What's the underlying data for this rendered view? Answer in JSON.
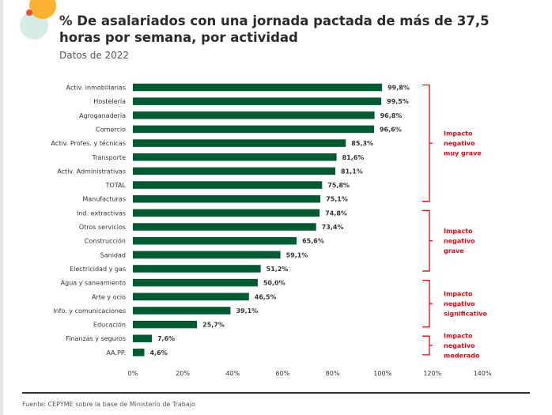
{
  "header": {
    "title": "% De asalariados con una jornada pactada de más de 37,5 horas por semana, por actividad",
    "subtitle": "Datos de 2022"
  },
  "footer": {
    "source": "Fuente: CEPYME sobre la base de Ministerio de Trabajo"
  },
  "colors": {
    "bar": "#005a32",
    "bracket": "#e30613",
    "logo_orange": "#f9b233",
    "logo_mint": "#d5ece3",
    "logo_red": "#e84e3c"
  },
  "chart_data": {
    "type": "bar",
    "orientation": "horizontal",
    "categories": [
      "Activ. inmobiliarias",
      "Hostelería",
      "Agroganadería",
      "Comercio",
      "Activ. Profes. y técnicas",
      "Transporte",
      "Activ. Administrativas",
      "TOTAL",
      "Manufacturas",
      "Ind. extractivas",
      "Otros servicios",
      "Construcción",
      "Sanidad",
      "Electricidad y gas",
      "Agua y saneamiento",
      "Arte y ocio",
      "Info. y comunicaciones",
      "Educación",
      "Finanzas y seguros",
      "AA.PP."
    ],
    "values": [
      99.8,
      99.5,
      96.8,
      96.6,
      85.3,
      81.6,
      81.1,
      75.8,
      75.1,
      74.8,
      73.4,
      65.6,
      59.1,
      51.2,
      50.0,
      46.5,
      39.1,
      25.7,
      7.6,
      4.6
    ],
    "value_labels": [
      "99,8%",
      "99,5%",
      "96,8%",
      "96,6%",
      "85,3%",
      "81,6%",
      "81,1%",
      "75,8%",
      "75,1%",
      "74,8%",
      "73,4%",
      "65,6%",
      "59,1%",
      "51,2%",
      "50,0%",
      "46,5%",
      "39,1%",
      "25,7%",
      "7,6%",
      "4,6%"
    ],
    "xlim": [
      0,
      140
    ],
    "xticks": [
      0,
      20,
      40,
      60,
      80,
      100,
      120,
      140
    ],
    "xtick_labels": [
      "0%",
      "20%",
      "40%",
      "60%",
      "80%",
      "100%",
      "120%",
      "140%"
    ],
    "grid": false,
    "groups": [
      {
        "label": "Impacto negativo muy grave",
        "lines": [
          "Impacto",
          "negativo",
          "muy grave"
        ],
        "first": 0,
        "last": 8
      },
      {
        "label": "Impacto negativo grave",
        "lines": [
          "Impacto",
          "negativo",
          "grave"
        ],
        "first": 9,
        "last": 13
      },
      {
        "label": "Impacto negativo significativo",
        "lines": [
          "Impacto",
          "negativo",
          "significativo"
        ],
        "first": 14,
        "last": 17
      },
      {
        "label": "Impacto negativo moderado",
        "lines": [
          "Impacto",
          "negativo",
          "moderado"
        ],
        "first": 18,
        "last": 19
      }
    ]
  }
}
